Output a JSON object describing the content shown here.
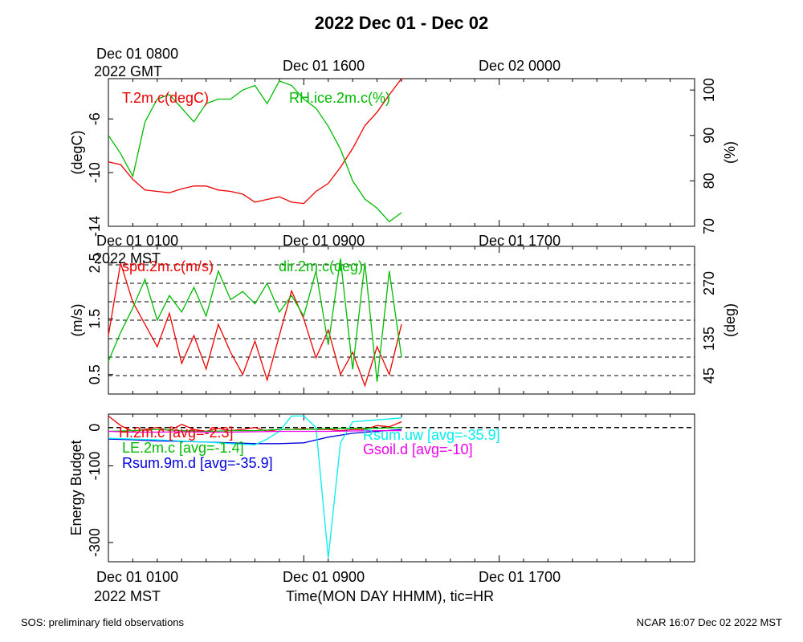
{
  "title": "2022 Dec 01 - Dec 02",
  "footer": {
    "left": "SOS: preliminary field observations",
    "right": "NCAR 16:07 Dec 02 2022 MST"
  },
  "top_axis": {
    "gmt_first_line1": "Dec 01 0800",
    "gmt_first_line2": "2022 GMT",
    "gmt_ticks": [
      "Dec 01 1600",
      "Dec 02 0000"
    ]
  },
  "mst_axis": {
    "first_line1": "Dec 01 0100",
    "first_line2": "2022 MST",
    "ticks": [
      "Dec 01 0900",
      "Dec 01 1700"
    ]
  },
  "xlabel": "Time(MON DAY HHMM), tic=HR",
  "colors": {
    "red": "#ee0000",
    "green": "#00bb00",
    "blue": "#0000dd",
    "cyan": "#00eeee",
    "magenta": "#ee00ee",
    "black": "#000000"
  },
  "chart_data": [
    {
      "type": "line",
      "panel": "temperature-rh",
      "x_unit": "hours since Dec 01 0100 MST",
      "xlim": [
        0,
        24
      ],
      "ylabel_left": "(degC)",
      "ylabel_right": "(%)",
      "ylim_left": [
        -14,
        -3
      ],
      "ylim_right": [
        70,
        102.5
      ],
      "yticks_left": [
        "-6",
        "-10",
        "-14"
      ],
      "yticks_right": [
        "100",
        "90",
        "80",
        "70"
      ],
      "series": [
        {
          "name": "T.2m.c(degC)",
          "color": "red",
          "axis": "left",
          "x": [
            0,
            0.5,
            1,
            1.5,
            2,
            2.5,
            3,
            3.5,
            4,
            4.5,
            5,
            5.5,
            6,
            6.5,
            7,
            7.5,
            8,
            8.5,
            9,
            9.5,
            10,
            10.5,
            11,
            11.5,
            12
          ],
          "y": [
            -9.2,
            -9.4,
            -10.5,
            -11.3,
            -11.4,
            -11.5,
            -11.2,
            -11.0,
            -11.0,
            -11.3,
            -11.4,
            -11.6,
            -12.2,
            -12.0,
            -11.8,
            -12.2,
            -12.3,
            -11.4,
            -10.8,
            -9.6,
            -8.2,
            -6.5,
            -5.5,
            -4.2,
            -3.0
          ]
        },
        {
          "name": "RH.ice.2m.c(%)",
          "color": "green",
          "axis": "right",
          "x": [
            0,
            0.5,
            1,
            1.5,
            2,
            2.5,
            3,
            3.5,
            4,
            4.5,
            5,
            5.5,
            6,
            6.5,
            7,
            7.5,
            8,
            8.5,
            9,
            9.5,
            10,
            10.5,
            11,
            11.5,
            12
          ],
          "y": [
            90,
            86,
            81,
            93,
            98,
            99,
            96,
            93,
            97,
            98,
            98,
            100,
            101,
            97,
            102,
            101,
            98,
            96,
            92,
            87,
            80,
            76,
            74,
            71,
            73
          ]
        }
      ]
    },
    {
      "type": "line",
      "panel": "wind",
      "x_unit": "hours since Dec 01 0100 MST",
      "xlim": [
        0,
        24
      ],
      "ylabel_left": "(m/s)",
      "ylabel_right": "(deg)",
      "ylim_left": [
        0.15,
        2.8
      ],
      "ylim_right": [
        0,
        360
      ],
      "yticks_left": [
        "2.5",
        "1.5",
        "0.5"
      ],
      "yticks_right": [
        "270",
        "135",
        "45"
      ],
      "dashed_lines_deg": [
        45,
        90,
        135,
        180,
        225,
        270,
        315
      ],
      "series": [
        {
          "name": "spd.2m.c(m/s)",
          "color": "red",
          "axis": "left",
          "x": [
            0,
            0.5,
            1,
            1.5,
            2,
            2.5,
            3,
            3.5,
            4,
            4.5,
            5,
            5.5,
            6,
            6.5,
            7,
            7.5,
            8,
            8.5,
            9,
            9.5,
            10,
            10.5,
            11,
            11.5,
            12
          ],
          "y": [
            1.2,
            2.5,
            1.8,
            1.4,
            1.0,
            1.6,
            0.7,
            1.2,
            0.6,
            1.4,
            0.9,
            0.5,
            1.1,
            0.4,
            1.2,
            2.0,
            1.5,
            0.8,
            1.3,
            0.5,
            0.9,
            0.3,
            1.0,
            0.5,
            1.4
          ]
        },
        {
          "name": "dir.2m.c(deg)",
          "color": "green",
          "axis": "right",
          "x": [
            0,
            0.5,
            1,
            1.5,
            2,
            2.5,
            3,
            3.5,
            4,
            4.5,
            5,
            5.5,
            6,
            6.5,
            7,
            7.5,
            8,
            8.5,
            9,
            9.5,
            10,
            10.5,
            11,
            11.5,
            12
          ],
          "y": [
            80,
            150,
            210,
            280,
            180,
            240,
            200,
            260,
            190,
            300,
            230,
            250,
            220,
            270,
            200,
            240,
            190,
            300,
            120,
            330,
            60,
            320,
            30,
            300,
            90
          ]
        }
      ]
    },
    {
      "type": "line",
      "panel": "energy-budget",
      "x_unit": "hours since Dec 01 0100 MST",
      "xlim": [
        0,
        24
      ],
      "ylabel": "Energy Budget",
      "ylim": [
        -350,
        35
      ],
      "yticks": [
        "0",
        "-100",
        "-300"
      ],
      "zero_line": 0,
      "series": [
        {
          "name": "H.2m.c [avg=-2.3]",
          "color": "red",
          "x": [
            0,
            0.5,
            1,
            1.5,
            2,
            2.5,
            3,
            3.5,
            4,
            4.5,
            5,
            5.5,
            6,
            6.5,
            7,
            7.5,
            8,
            8.5,
            9,
            9.5,
            10,
            10.5,
            11,
            11.5,
            12
          ],
          "y": [
            30,
            5,
            -10,
            -5,
            0,
            -8,
            8,
            -5,
            -10,
            -2,
            -8,
            -5,
            0,
            -10,
            -5,
            -5,
            -3,
            -5,
            -5,
            -8,
            -5,
            -5,
            5,
            2,
            15
          ]
        },
        {
          "name": "LE.2m.c [avg=-1.4]",
          "color": "green",
          "x": [
            0,
            1,
            2,
            3,
            4,
            5,
            6,
            7,
            8,
            9,
            10,
            11,
            12
          ],
          "y": [
            -10,
            -8,
            -5,
            -8,
            -10,
            -8,
            -8,
            -5,
            -5,
            -3,
            -2,
            -2,
            0
          ]
        },
        {
          "name": "Rsum.9m.d [avg=-35.9]",
          "color": "blue",
          "x": [
            0,
            1,
            2,
            3,
            4,
            5,
            6,
            7,
            8,
            9,
            10,
            11,
            12
          ],
          "y": [
            -30,
            -32,
            -35,
            -36,
            -38,
            -40,
            -42,
            -42,
            -40,
            -25,
            -15,
            -10,
            -5
          ]
        },
        {
          "name": "Rsum.uw [avg=-35.9]",
          "color": "cyan",
          "x": [
            0,
            1,
            2,
            3,
            4,
            5,
            6,
            6.5,
            7,
            7.5,
            8,
            8.5,
            9,
            9.5,
            10,
            11,
            12
          ],
          "y": [
            -28,
            -30,
            -32,
            -35,
            -38,
            -42,
            -45,
            -30,
            -10,
            30,
            30,
            0,
            -340,
            -40,
            15,
            20,
            25
          ]
        },
        {
          "name": "Gsoil.d [avg=-10]",
          "color": "magenta",
          "x": [
            0,
            1,
            2,
            3,
            4,
            5,
            6,
            7,
            8,
            9,
            10,
            11,
            12
          ],
          "y": [
            -10,
            -12,
            -12,
            -11,
            -12,
            -12,
            -11,
            -10,
            -10,
            -10,
            -9,
            -8,
            -8
          ]
        }
      ]
    }
  ]
}
